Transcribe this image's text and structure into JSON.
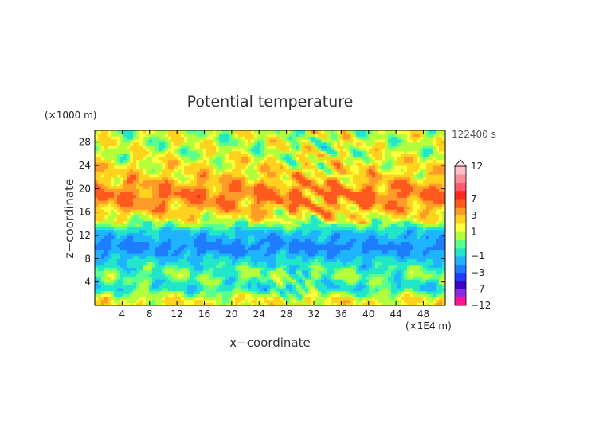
{
  "chart_data": {
    "type": "heatmap",
    "title": "Potential temperature",
    "xlabel": "x−coordinate",
    "ylabel": "z−coordinate",
    "x_unit": "(×1E4 m)",
    "y_unit": "(×1000 m)",
    "time_label": "122400 s",
    "xlim": [
      0,
      51.2
    ],
    "ylim": [
      0,
      30
    ],
    "x_ticks": [
      4,
      8,
      12,
      16,
      20,
      24,
      28,
      32,
      36,
      40,
      44,
      48
    ],
    "y_ticks": [
      4,
      8,
      12,
      16,
      20,
      24,
      28
    ],
    "colorbar": {
      "labels": [
        "12",
        "7",
        "3",
        "1",
        "−1",
        "−3",
        "−7",
        "−12"
      ],
      "label_values": [
        12,
        7,
        3,
        1,
        -1,
        -3,
        -7,
        -12
      ],
      "colors": [
        "#ff1493",
        "#8a2be2",
        "#3f00c8",
        "#1e3cff",
        "#1e7dff",
        "#1eb4ff",
        "#22e6c8",
        "#5aff8c",
        "#b4ff3c",
        "#ffff3c",
        "#ffd21e",
        "#ff9b28",
        "#ff5a1e",
        "#ff2820",
        "#ff5a6e",
        "#ff8c9a",
        "#ffbec8"
      ]
    },
    "bands": [
      {
        "z_range": [
          0,
          2
        ],
        "anomaly": 0.8
      },
      {
        "z_range": [
          2,
          4
        ],
        "anomaly": -1.6
      },
      {
        "z_range": [
          4,
          6
        ],
        "anomaly": -0.6
      },
      {
        "z_range": [
          6,
          8
        ],
        "anomaly": -1.4
      },
      {
        "z_range": [
          8,
          12
        ],
        "anomaly": -3.5
      },
      {
        "z_range": [
          12,
          13.5
        ],
        "anomaly": -2.0
      },
      {
        "z_range": [
          13.5,
          15.5
        ],
        "anomaly": 0.3
      },
      {
        "z_range": [
          15.5,
          17
        ],
        "anomaly": 1.8
      },
      {
        "z_range": [
          17,
          21
        ],
        "anomaly": 3.2
      },
      {
        "z_range": [
          21,
          23
        ],
        "anomaly": 1.5
      },
      {
        "z_range": [
          23,
          30
        ],
        "anomaly": 0.2
      }
    ]
  }
}
